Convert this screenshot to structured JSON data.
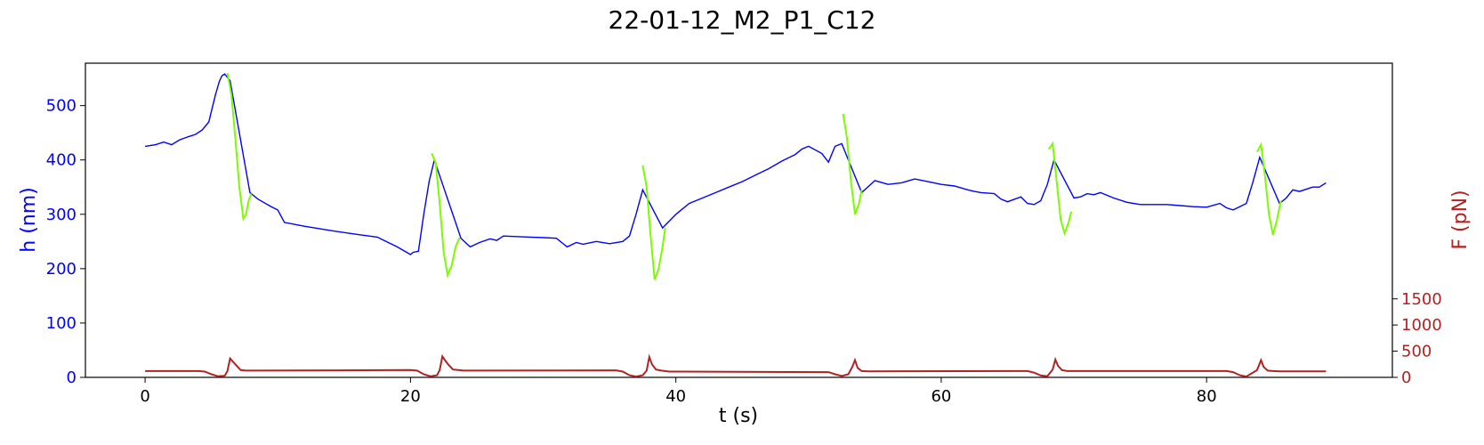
{
  "chart_data": {
    "type": "line",
    "title": "22-01-12_M2_P1_C12",
    "xlabel": "t (s)",
    "ylabel_left": "h (nm)",
    "ylabel_right": "F (pN)",
    "xlim": [
      -4.5,
      94
    ],
    "ylim_left": [
      0,
      578
    ],
    "ylim_right": [
      0,
      6000
    ],
    "x_ticks": [
      0,
      20,
      40,
      60,
      80
    ],
    "y_left_ticks": [
      0,
      100,
      200,
      300,
      400,
      500
    ],
    "y_right_ticks": [
      0,
      500,
      1000,
      1500
    ],
    "grid": false,
    "colors": {
      "left_axis": "#0000ff",
      "right_axis": "#b22222",
      "h_series": "#0000ff",
      "h_compression": "#7cfc00",
      "force": "#b22222"
    },
    "series": [
      {
        "axis": "left",
        "role": "h",
        "color": "#0000ff",
        "x": [
          0,
          0.8,
          1.4,
          2.0,
          2.6,
          3.3,
          3.8,
          4.3,
          4.8,
          5.0,
          5.3,
          5.6,
          5.8,
          6.0,
          6.2,
          6.4,
          7.9,
          8.5,
          9.5,
          10.0,
          10.5,
          12,
          14,
          16,
          17.5,
          18,
          19,
          20,
          20.2,
          20.6,
          21.0,
          21.4,
          21.8,
          23.8,
          24.5,
          25.2,
          26,
          26.5,
          27,
          28,
          29,
          30,
          31,
          31.8,
          32.5,
          33,
          34,
          35,
          36,
          36.5,
          37.0,
          37.5,
          39.0,
          40,
          41,
          42,
          43,
          44,
          45,
          46,
          47,
          48,
          49,
          49.5,
          50,
          51,
          51.5,
          52,
          52.5,
          54.0,
          55,
          56,
          57,
          58,
          59,
          60,
          61,
          62,
          62.5,
          63,
          64,
          64.5,
          65,
          66,
          66.5,
          67,
          67.5,
          68.0,
          68.5,
          70,
          70.5,
          71,
          71.5,
          72,
          73,
          74,
          75,
          76,
          77,
          78,
          79,
          80,
          81,
          81.5,
          82,
          82.5,
          83,
          83.5,
          84,
          85.5,
          86,
          86.5,
          87,
          88,
          88.5,
          89
        ],
        "y": [
          425,
          428,
          433,
          428,
          437,
          443,
          447,
          455,
          470,
          490,
          520,
          545,
          555,
          558,
          552,
          546,
          340,
          328,
          314,
          308,
          285,
          278,
          270,
          263,
          258,
          252,
          240,
          226,
          230,
          232,
          300,
          360,
          400,
          256,
          240,
          248,
          255,
          252,
          260,
          259,
          258,
          257,
          256,
          240,
          248,
          245,
          250,
          246,
          250,
          260,
          300,
          345,
          275,
          300,
          320,
          330,
          340,
          350,
          360,
          372,
          384,
          398,
          410,
          420,
          425,
          412,
          396,
          425,
          430,
          340,
          362,
          355,
          358,
          365,
          360,
          355,
          352,
          345,
          342,
          340,
          338,
          328,
          323,
          332,
          320,
          318,
          325,
          355,
          400,
          330,
          332,
          338,
          336,
          340,
          330,
          322,
          318,
          318,
          318,
          316,
          314,
          313,
          320,
          312,
          308,
          314,
          320,
          360,
          405,
          320,
          330,
          345,
          342,
          350,
          350,
          358
        ]
      },
      {
        "axis": "left",
        "role": "compression",
        "color": "#7cfc00",
        "segments": [
          {
            "x": [
              6.2,
              6.5,
              6.8,
              7.1,
              7.4,
              7.6,
              7.8,
              8.0
            ],
            "y": [
              560,
              520,
              440,
              350,
              292,
              300,
              325,
              338
            ]
          },
          {
            "x": [
              21.6,
              21.9,
              22.2,
              22.5,
              22.8,
              23.1,
              23.4,
              23.7
            ],
            "y": [
              412,
              395,
              320,
              230,
              188,
              205,
              240,
              257
            ]
          },
          {
            "x": [
              37.5,
              37.8,
              38.1,
              38.4,
              38.7,
              39.0,
              39.2
            ],
            "y": [
              390,
              350,
              260,
              180,
              200,
              240,
              275
            ]
          },
          {
            "x": [
              52.6,
              52.9,
              53.2,
              53.5,
              53.8,
              54.0
            ],
            "y": [
              485,
              440,
              360,
              300,
              320,
              345
            ]
          },
          {
            "x": [
              68.1,
              68.4,
              68.7,
              69.0,
              69.3,
              69.6,
              69.8
            ],
            "y": [
              420,
              430,
              360,
              290,
              265,
              285,
              305
            ]
          },
          {
            "x": [
              83.8,
              84.1,
              84.4,
              84.7,
              85.0,
              85.3,
              85.6
            ],
            "y": [
              415,
              428,
              370,
              300,
              262,
              290,
              325
            ]
          }
        ]
      },
      {
        "axis": "right",
        "role": "force",
        "color": "#b22222",
        "x": [
          0,
          4,
          4.5,
          5,
          5.5,
          6,
          6.2,
          6.4,
          6.8,
          7.2,
          7.6,
          8.0,
          20,
          20.5,
          21,
          21.5,
          22.0,
          22.2,
          22.4,
          22.8,
          23.2,
          23.6,
          24.0,
          35.5,
          36,
          36.5,
          37,
          37.5,
          37.8,
          38.0,
          38.2,
          38.5,
          38.9,
          39.5,
          51.5,
          52,
          52.5,
          53.0,
          53.3,
          53.5,
          53.7,
          54.0,
          54.5,
          66.5,
          67,
          67.5,
          68,
          68.4,
          68.6,
          68.8,
          69.1,
          69.5,
          70,
          81.5,
          82,
          82.5,
          83,
          83.8,
          84.1,
          84.3,
          84.6,
          85.0,
          85.5,
          89
        ],
        "y": [
          120,
          120,
          110,
          60,
          20,
          30,
          120,
          360,
          250,
          140,
          130,
          130,
          140,
          130,
          60,
          20,
          40,
          140,
          400,
          260,
          150,
          140,
          130,
          135,
          110,
          40,
          15,
          40,
          130,
          390,
          250,
          150,
          130,
          110,
          100,
          60,
          25,
          60,
          200,
          330,
          180,
          120,
          115,
          120,
          90,
          35,
          20,
          150,
          340,
          220,
          140,
          120,
          120,
          120,
          100,
          40,
          15,
          140,
          330,
          200,
          130,
          120,
          115,
          115
        ]
      }
    ]
  }
}
